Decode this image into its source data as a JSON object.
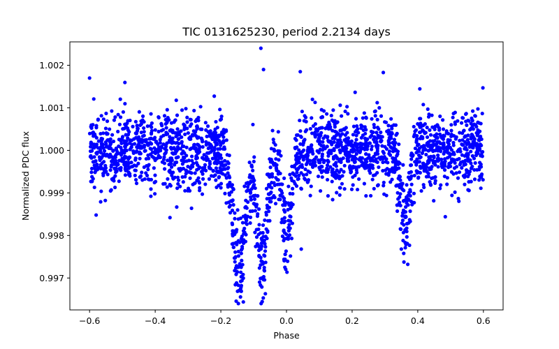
{
  "chart_data": {
    "type": "scatter",
    "title": "TIC 0131625230, period 2.2134 days",
    "xlabel": "Phase",
    "ylabel": "Normalized PDC flux",
    "xlim": [
      -0.66,
      0.66
    ],
    "ylim": [
      0.99625,
      1.00255
    ],
    "xticks": [
      -0.6,
      -0.4,
      -0.2,
      0.0,
      0.2,
      0.4,
      0.6
    ],
    "xtick_labels": [
      "−0.6",
      "−0.4",
      "−0.2",
      "0.0",
      "0.2",
      "0.4",
      "0.6"
    ],
    "yticks": [
      0.997,
      0.998,
      0.999,
      1.0,
      1.001,
      1.002
    ],
    "ytick_labels": [
      "0.997",
      "0.998",
      "0.999",
      "1.000",
      "1.001",
      "1.002"
    ],
    "marker_color": "#0000ff",
    "grid": false,
    "series": [
      {
        "name": "PDC flux",
        "x_range": [
          -0.6,
          0.6
        ],
        "baseline": 1.0,
        "scatter_sd": 0.00045,
        "dips": [
          {
            "center": -0.145,
            "depth": 0.0028,
            "width": 0.018
          },
          {
            "center": -0.075,
            "depth": 0.0027,
            "width": 0.016
          },
          {
            "center": 0.0,
            "depth": 0.0019,
            "width": 0.014
          },
          {
            "center": 0.36,
            "depth": 0.0016,
            "width": 0.014
          }
        ],
        "outliers": [
          {
            "x": -0.078,
            "y": 1.0024
          },
          {
            "x": -0.07,
            "y": 1.0019
          },
          {
            "x": 0.042,
            "y": 1.00185
          },
          {
            "x": 0.295,
            "y": 1.00183
          },
          {
            "x": -0.58,
            "y": 0.99848
          },
          {
            "x": -0.355,
            "y": 0.99842
          },
          {
            "x": 0.35,
            "y": 0.99768
          },
          {
            "x": 0.045,
            "y": 0.99768
          },
          {
            "x": -0.6,
            "y": 1.0017
          }
        ]
      }
    ]
  }
}
